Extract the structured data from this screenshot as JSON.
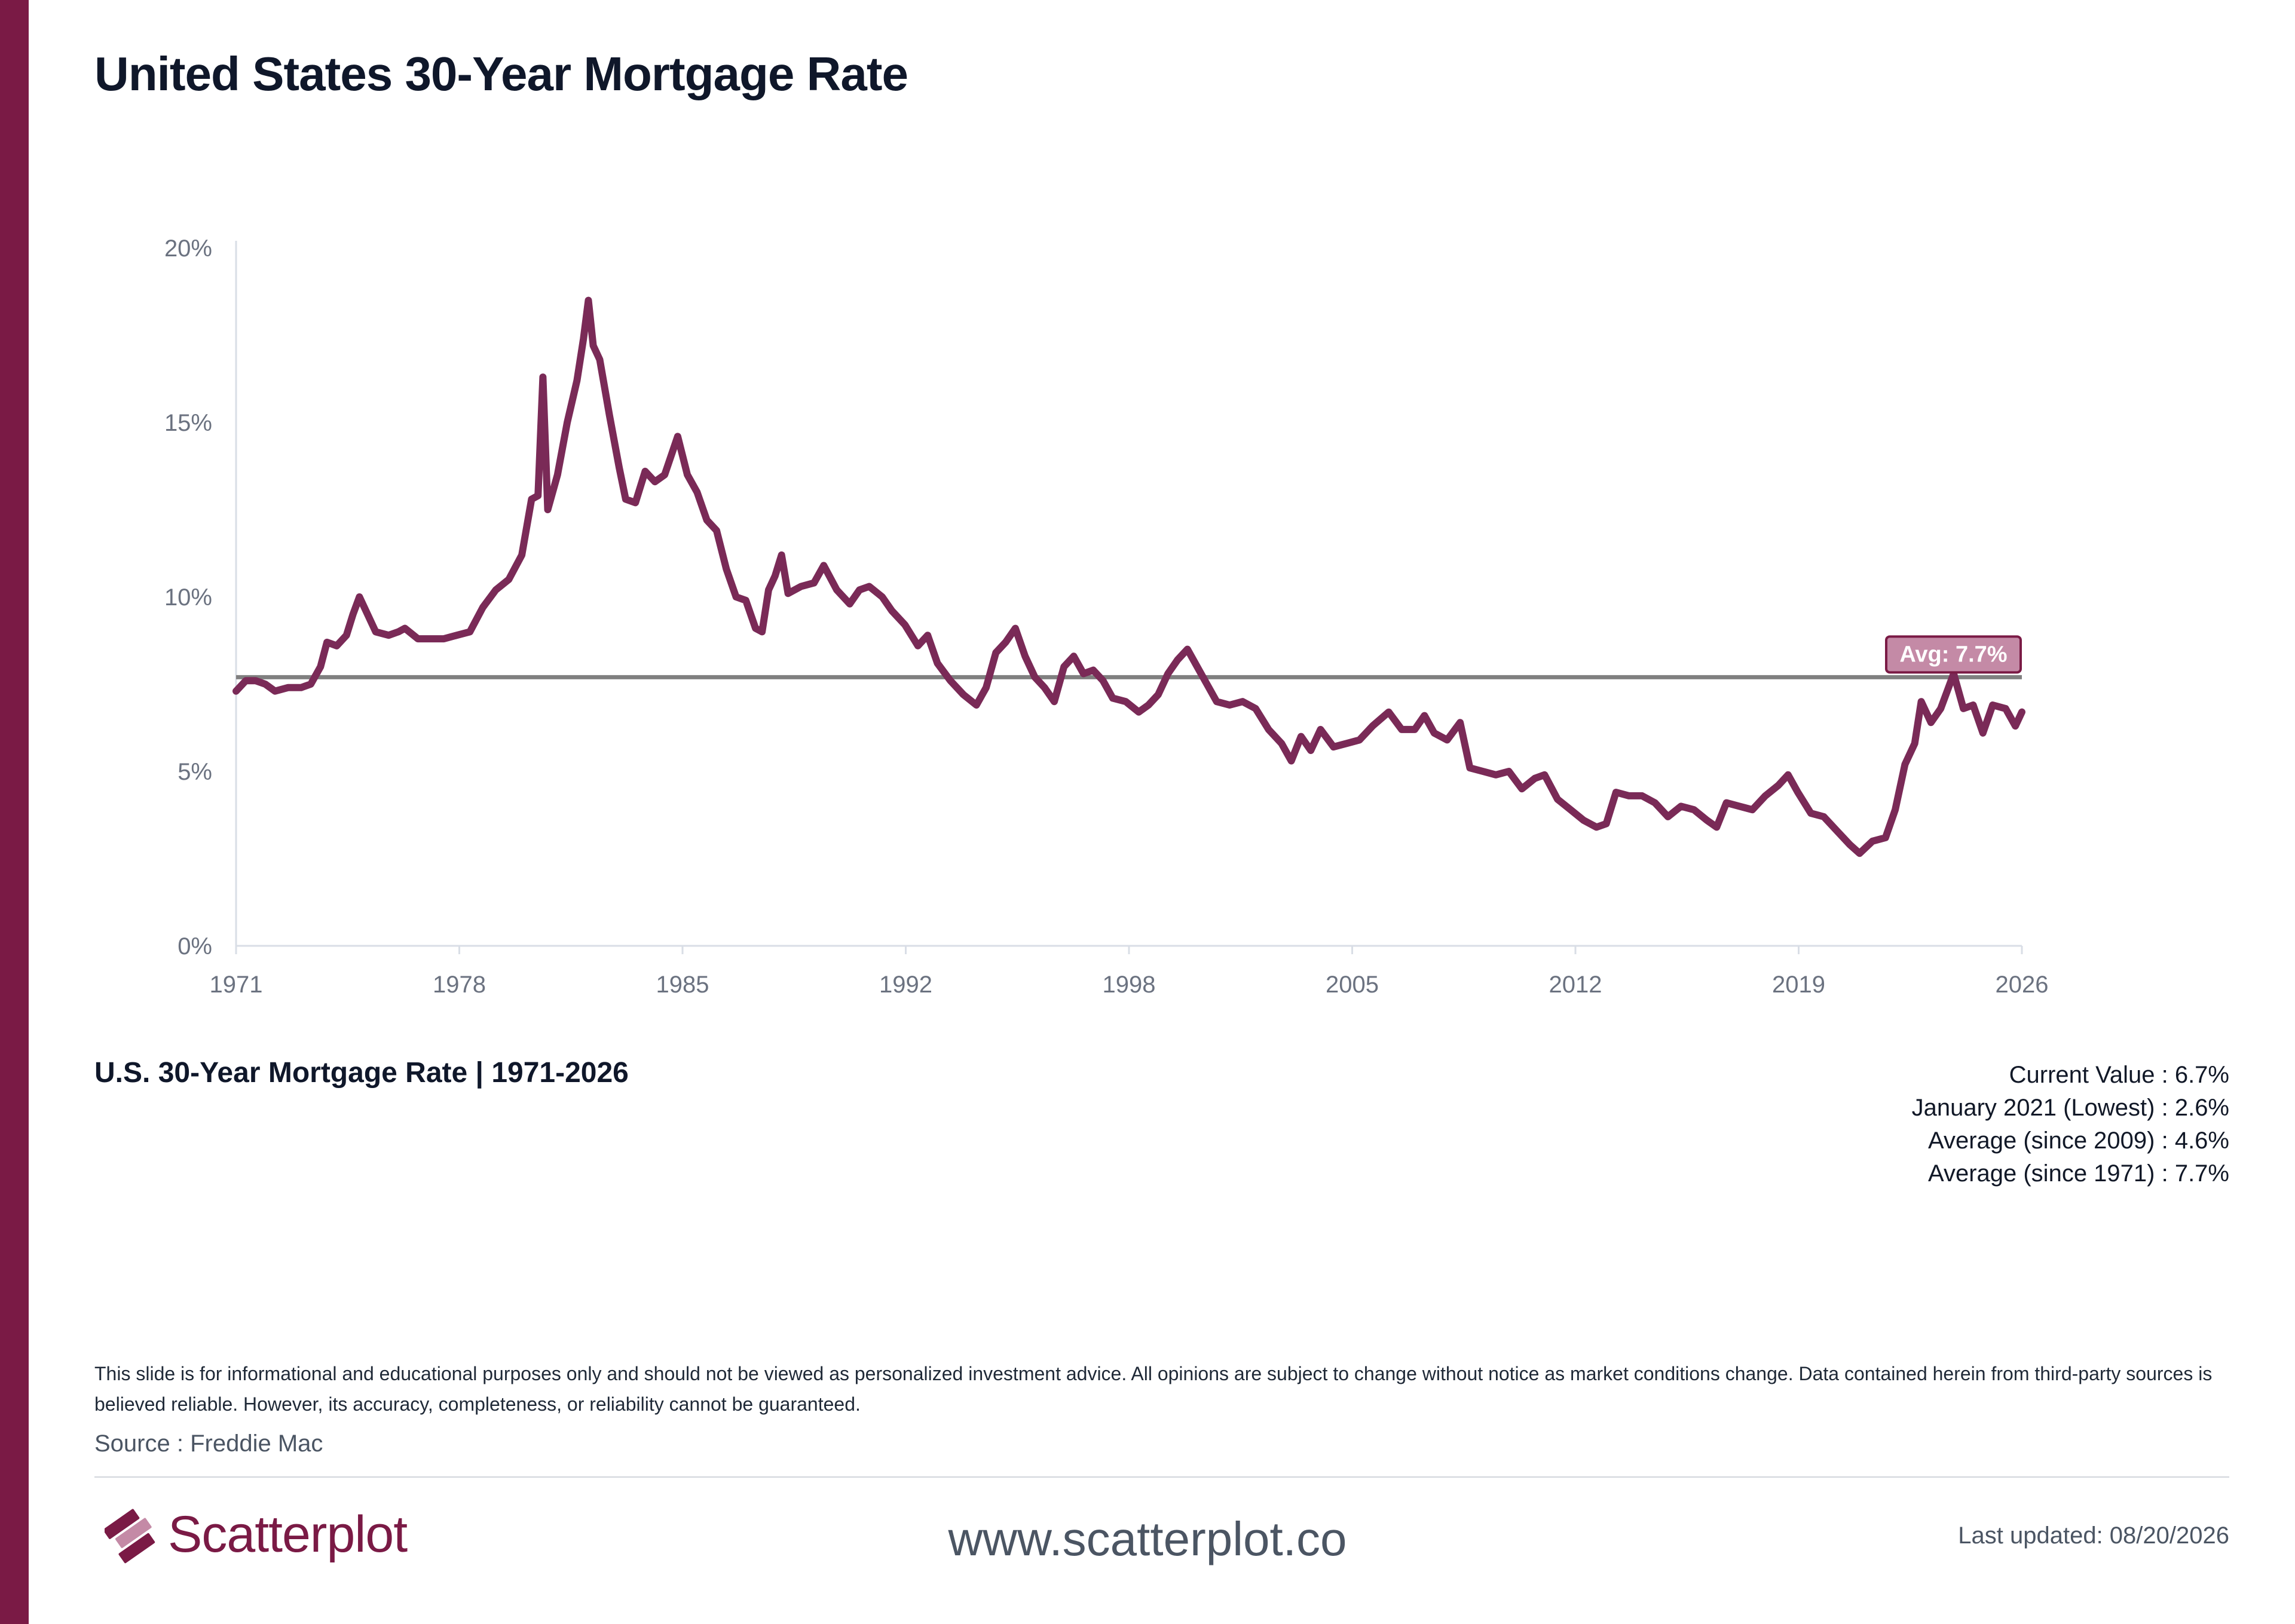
{
  "header": {
    "title": "United States 30-Year Mortgage Rate"
  },
  "chart_data": {
    "type": "line",
    "title": "United States 30-Year Mortgage Rate",
    "xlabel": "",
    "ylabel": "",
    "x_ticks": [
      "1971",
      "1978",
      "1985",
      "1992",
      "1998",
      "2005",
      "2012",
      "2019",
      "2026"
    ],
    "y_ticks": [
      "0%",
      "5%",
      "10%",
      "15%",
      "20%"
    ],
    "xlim": [
      1971,
      2026
    ],
    "ylim": [
      0,
      20
    ],
    "grid": false,
    "series": [
      {
        "color": "#7a2a57",
        "points": [
          [
            1971.0,
            7.3
          ],
          [
            1971.3,
            7.6
          ],
          [
            1971.6,
            7.6
          ],
          [
            1971.9,
            7.5
          ],
          [
            1972.2,
            7.3
          ],
          [
            1972.6,
            7.4
          ],
          [
            1973.0,
            7.4
          ],
          [
            1973.3,
            7.5
          ],
          [
            1973.6,
            8.0
          ],
          [
            1973.8,
            8.7
          ],
          [
            1974.1,
            8.6
          ],
          [
            1974.4,
            8.9
          ],
          [
            1974.6,
            9.5
          ],
          [
            1974.8,
            10.0
          ],
          [
            1975.0,
            9.6
          ],
          [
            1975.3,
            9.0
          ],
          [
            1975.7,
            8.9
          ],
          [
            1976.0,
            9.0
          ],
          [
            1976.2,
            9.1
          ],
          [
            1976.6,
            8.8
          ],
          [
            1977.0,
            8.8
          ],
          [
            1977.4,
            8.8
          ],
          [
            1977.8,
            8.9
          ],
          [
            1978.2,
            9.0
          ],
          [
            1978.6,
            9.7
          ],
          [
            1979.0,
            10.2
          ],
          [
            1979.4,
            10.5
          ],
          [
            1979.8,
            11.2
          ],
          [
            1980.1,
            12.8
          ],
          [
            1980.3,
            12.9
          ],
          [
            1980.45,
            16.3
          ],
          [
            1980.6,
            12.5
          ],
          [
            1980.9,
            13.5
          ],
          [
            1981.2,
            15.0
          ],
          [
            1981.5,
            16.2
          ],
          [
            1981.7,
            17.4
          ],
          [
            1981.85,
            18.5
          ],
          [
            1982.0,
            17.2
          ],
          [
            1982.2,
            16.8
          ],
          [
            1982.5,
            15.2
          ],
          [
            1982.8,
            13.7
          ],
          [
            1983.0,
            12.8
          ],
          [
            1983.3,
            12.7
          ],
          [
            1983.6,
            13.6
          ],
          [
            1983.9,
            13.3
          ],
          [
            1984.2,
            13.5
          ],
          [
            1984.6,
            14.6
          ],
          [
            1984.9,
            13.5
          ],
          [
            1985.2,
            13.0
          ],
          [
            1985.5,
            12.2
          ],
          [
            1985.8,
            11.9
          ],
          [
            1986.1,
            10.8
          ],
          [
            1986.4,
            10.0
          ],
          [
            1986.7,
            9.9
          ],
          [
            1987.0,
            9.1
          ],
          [
            1987.2,
            9.0
          ],
          [
            1987.4,
            10.2
          ],
          [
            1987.6,
            10.6
          ],
          [
            1987.8,
            11.2
          ],
          [
            1988.0,
            10.1
          ],
          [
            1988.4,
            10.3
          ],
          [
            1988.8,
            10.4
          ],
          [
            1989.1,
            10.9
          ],
          [
            1989.5,
            10.2
          ],
          [
            1989.9,
            9.8
          ],
          [
            1990.2,
            10.2
          ],
          [
            1990.5,
            10.3
          ],
          [
            1990.9,
            10.0
          ],
          [
            1991.2,
            9.6
          ],
          [
            1991.6,
            9.2
          ],
          [
            1992.0,
            8.6
          ],
          [
            1992.3,
            8.9
          ],
          [
            1992.6,
            8.1
          ],
          [
            1993.0,
            7.6
          ],
          [
            1993.4,
            7.2
          ],
          [
            1993.8,
            6.9
          ],
          [
            1994.1,
            7.4
          ],
          [
            1994.4,
            8.4
          ],
          [
            1994.7,
            8.7
          ],
          [
            1995.0,
            9.1
          ],
          [
            1995.3,
            8.3
          ],
          [
            1995.6,
            7.7
          ],
          [
            1995.9,
            7.4
          ],
          [
            1996.2,
            7.0
          ],
          [
            1996.5,
            8.0
          ],
          [
            1996.8,
            8.3
          ],
          [
            1997.1,
            7.8
          ],
          [
            1997.4,
            7.9
          ],
          [
            1997.7,
            7.6
          ],
          [
            1998.0,
            7.1
          ],
          [
            1998.4,
            7.0
          ],
          [
            1998.8,
            6.7
          ],
          [
            1999.1,
            6.9
          ],
          [
            1999.4,
            7.2
          ],
          [
            1999.7,
            7.8
          ],
          [
            2000.0,
            8.2
          ],
          [
            2000.3,
            8.5
          ],
          [
            2000.6,
            8.0
          ],
          [
            2000.9,
            7.5
          ],
          [
            2001.2,
            7.0
          ],
          [
            2001.6,
            6.9
          ],
          [
            2002.0,
            7.0
          ],
          [
            2002.4,
            6.8
          ],
          [
            2002.8,
            6.2
          ],
          [
            2003.2,
            5.8
          ],
          [
            2003.5,
            5.3
          ],
          [
            2003.8,
            6.0
          ],
          [
            2004.1,
            5.6
          ],
          [
            2004.4,
            6.2
          ],
          [
            2004.8,
            5.7
          ],
          [
            2005.2,
            5.8
          ],
          [
            2005.6,
            5.9
          ],
          [
            2006.0,
            6.3
          ],
          [
            2006.5,
            6.7
          ],
          [
            2006.9,
            6.2
          ],
          [
            2007.3,
            6.2
          ],
          [
            2007.6,
            6.6
          ],
          [
            2007.9,
            6.1
          ],
          [
            2008.3,
            5.9
          ],
          [
            2008.7,
            6.4
          ],
          [
            2009.0,
            5.1
          ],
          [
            2009.4,
            5.0
          ],
          [
            2009.8,
            4.9
          ],
          [
            2010.2,
            5.0
          ],
          [
            2010.6,
            4.5
          ],
          [
            2011.0,
            4.8
          ],
          [
            2011.3,
            4.9
          ],
          [
            2011.7,
            4.2
          ],
          [
            2012.1,
            3.9
          ],
          [
            2012.5,
            3.6
          ],
          [
            2012.9,
            3.4
          ],
          [
            2013.2,
            3.5
          ],
          [
            2013.5,
            4.4
          ],
          [
            2013.9,
            4.3
          ],
          [
            2014.3,
            4.3
          ],
          [
            2014.7,
            4.1
          ],
          [
            2015.1,
            3.7
          ],
          [
            2015.5,
            4.0
          ],
          [
            2015.9,
            3.9
          ],
          [
            2016.3,
            3.6
          ],
          [
            2016.6,
            3.4
          ],
          [
            2016.9,
            4.1
          ],
          [
            2017.3,
            4.0
          ],
          [
            2017.7,
            3.9
          ],
          [
            2018.1,
            4.3
          ],
          [
            2018.5,
            4.6
          ],
          [
            2018.8,
            4.9
          ],
          [
            2019.1,
            4.4
          ],
          [
            2019.5,
            3.8
          ],
          [
            2019.9,
            3.7
          ],
          [
            2020.3,
            3.3
          ],
          [
            2020.7,
            2.9
          ],
          [
            2021.0,
            2.65
          ],
          [
            2021.4,
            3.0
          ],
          [
            2021.8,
            3.1
          ],
          [
            2022.1,
            3.9
          ],
          [
            2022.4,
            5.2
          ],
          [
            2022.7,
            5.8
          ],
          [
            2022.9,
            7.0
          ],
          [
            2023.2,
            6.4
          ],
          [
            2023.5,
            6.8
          ],
          [
            2023.9,
            7.8
          ],
          [
            2024.2,
            6.8
          ],
          [
            2024.5,
            6.9
          ],
          [
            2024.8,
            6.1
          ],
          [
            2025.1,
            6.9
          ],
          [
            2025.5,
            6.8
          ],
          [
            2025.8,
            6.3
          ],
          [
            2026.0,
            6.7
          ]
        ]
      }
    ],
    "average": {
      "value": 7.7,
      "label": "Avg: 7.7%",
      "line_color": "#808080",
      "label_color": "#c48aa6"
    }
  },
  "footer": {
    "subtitle": "U.S. 30-Year Mortgage Rate | 1971-2026",
    "stats": [
      "Current Value :  6.7%",
      "January 2021 (Lowest) :  2.6%",
      "Average (since 2009) :  4.6%",
      "Average (since 1971) :  7.7%"
    ],
    "disclaimer": "This slide is for informational and educational purposes only and should not be viewed as personalized investment advice. All opinions are subject to change without notice as market conditions change. Data contained herein from third-party sources is believed reliable. However, its accuracy, completeness, or reliability cannot be guaranteed.",
    "source": "Source : Freddie Mac",
    "brand": "Scatterplot",
    "website": "www.scatterplot.co",
    "updated": "Last updated: 08/20/2026"
  },
  "colors": {
    "accent": "#7a1a45",
    "line": "#7a2a57"
  }
}
